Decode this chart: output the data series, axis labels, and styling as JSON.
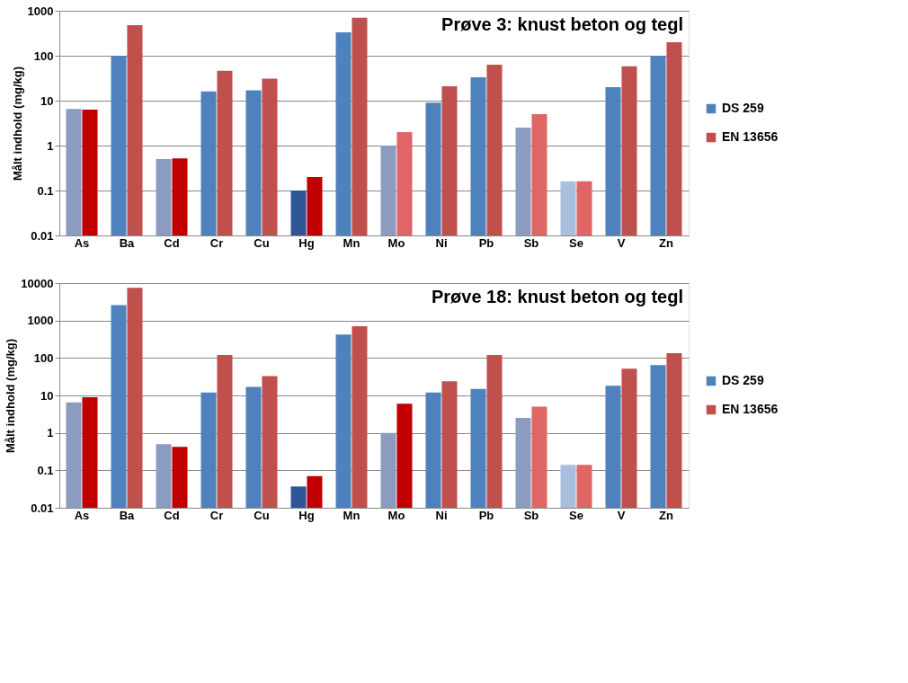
{
  "chart_data": [
    {
      "type": "bar",
      "title": "Prøve 3: knust beton og tegl",
      "ylabel": "Målt indhold (mg/kg)",
      "log": true,
      "grid": "y",
      "legend": "right",
      "categories": [
        "As",
        "Ba",
        "Cd",
        "Cr",
        "Cu",
        "Hg",
        "Mn",
        "Mo",
        "Ni",
        "Pb",
        "Sb",
        "Se",
        "V",
        "Zn"
      ],
      "ylim": [
        0.01,
        1000
      ],
      "yticks": [
        0.01,
        0.1,
        1,
        10,
        100,
        1000
      ],
      "series": [
        {
          "name": "DS 259",
          "color": "#4f81bd",
          "colors": [
            "#8c9bc0",
            "#4f81bd",
            "#8c9bc0",
            "#4f81bd",
            "#4f81bd",
            "#2f5597",
            "#4f81bd",
            "#8c9bc0",
            "#4f81bd",
            "#4f81bd",
            "#8c9bc0",
            "#a9bfe0",
            "#4f81bd",
            "#4f81bd"
          ],
          "values": [
            6.5,
            100,
            0.5,
            16,
            17,
            0.1,
            330,
            1,
            9,
            33,
            2.5,
            0.16,
            20,
            100
          ]
        },
        {
          "name": "EN 13656",
          "color": "#c0504d",
          "colors": [
            "#c00000",
            "#c0504d",
            "#c00000",
            "#c0504d",
            "#c0504d",
            "#c00000",
            "#c0504d",
            "#e06666",
            "#c0504d",
            "#c0504d",
            "#e06666",
            "#e06666",
            "#c0504d",
            "#c0504d"
          ],
          "values": [
            6.3,
            480,
            0.52,
            46,
            31,
            0.2,
            700,
            2,
            21,
            63,
            5,
            0.16,
            58,
            200
          ]
        }
      ]
    },
    {
      "type": "bar",
      "title": "Prøve 18: knust beton og tegl",
      "ylabel": "Målt indhold (mg/kg)",
      "log": true,
      "grid": "y",
      "legend": "right",
      "categories": [
        "As",
        "Ba",
        "Cd",
        "Cr",
        "Cu",
        "Hg",
        "Mn",
        "Mo",
        "Ni",
        "Pb",
        "Sb",
        "Se",
        "V",
        "Zn"
      ],
      "ylim": [
        0.01,
        10000
      ],
      "yticks": [
        0.01,
        0.1,
        1,
        10,
        100,
        1000,
        10000
      ],
      "series": [
        {
          "name": "DS 259",
          "color": "#4f81bd",
          "colors": [
            "#8c9bc0",
            "#4f81bd",
            "#8c9bc0",
            "#4f81bd",
            "#4f81bd",
            "#2f5597",
            "#4f81bd",
            "#8c9bc0",
            "#4f81bd",
            "#4f81bd",
            "#8c9bc0",
            "#a9bfe0",
            "#4f81bd",
            "#4f81bd"
          ],
          "values": [
            6.5,
            2600,
            0.5,
            12,
            17,
            0.037,
            420,
            1,
            12,
            15,
            2.5,
            0.14,
            18,
            65
          ]
        },
        {
          "name": "EN 13656",
          "color": "#c0504d",
          "colors": [
            "#c00000",
            "#c0504d",
            "#c00000",
            "#c0504d",
            "#c0504d",
            "#c00000",
            "#c0504d",
            "#c00000",
            "#c0504d",
            "#c0504d",
            "#e06666",
            "#e06666",
            "#c0504d",
            "#c0504d"
          ],
          "values": [
            9,
            7500,
            0.42,
            120,
            33,
            0.07,
            700,
            6,
            24,
            120,
            5,
            0.14,
            52,
            135
          ]
        }
      ]
    }
  ]
}
